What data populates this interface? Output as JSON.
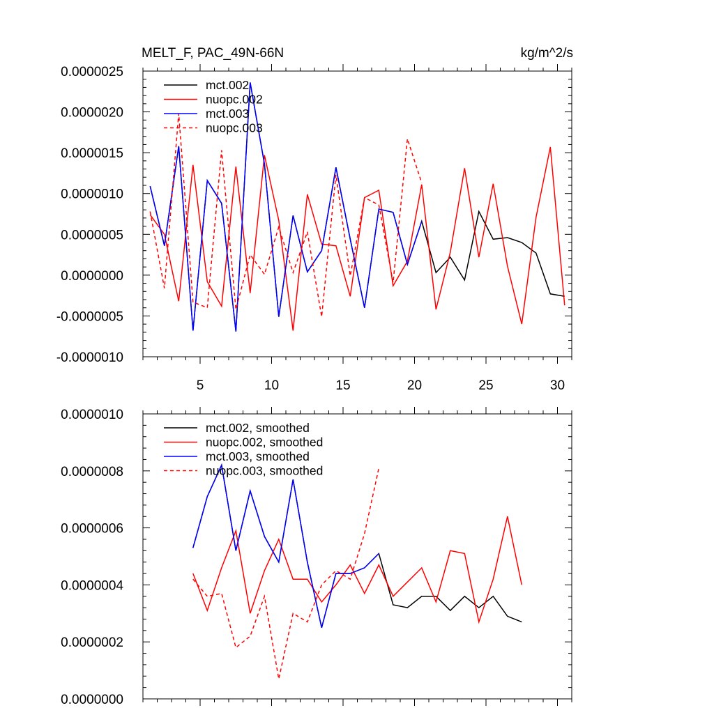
{
  "chart_data": [
    {
      "type": "line",
      "title": "MELT_F, PAC_49N-66N",
      "units": "kg/m^2/s",
      "xlabel": "",
      "ylabel": "",
      "xlim": [
        1,
        31
      ],
      "ylim": [
        -1e-06,
        2.5e-06
      ],
      "xticks": [
        5,
        10,
        15,
        20,
        25,
        30
      ],
      "xtick_labels": [
        "5",
        "10",
        "15",
        "20",
        "25",
        "30"
      ],
      "yticks": [
        -1e-06,
        -5e-07,
        0,
        5e-07,
        1e-06,
        1.5e-06,
        2e-06,
        2.5e-06
      ],
      "ytick_labels": [
        "-0.0000010",
        "-0.0000005",
        "0.0000000",
        "0.0000005",
        "0.0000010",
        "0.0000015",
        "0.0000020",
        "0.0000025"
      ],
      "grid": false,
      "legend_position": "top-left",
      "series": [
        {
          "name": "mct.002",
          "color": "#000000",
          "dash": "solid",
          "x": [
            1.5,
            2.5,
            3.5,
            4.5,
            5.5,
            6.5,
            7.5,
            8.5,
            9.5,
            10.5,
            11.5,
            12.5,
            13.5,
            14.5,
            15.5,
            16.5,
            17.5,
            18.5,
            19.5,
            20.5,
            21.5,
            22.5,
            23.5,
            24.5,
            25.5,
            26.5,
            27.5,
            28.5,
            29.5,
            30.5
          ],
          "values": [
            1.09e-06,
            3.6e-07,
            1.58e-06,
            -6.8e-07,
            1.16e-06,
            8.8e-07,
            -6.9e-07,
            2.36e-06,
            1.36e-06,
            -5.1e-07,
            7.3e-07,
            4e-08,
            3e-07,
            1.32e-06,
            4.4e-07,
            -4e-07,
            8.1e-07,
            7.7e-07,
            1.3e-07,
            6.6e-07,
            3e-08,
            2.2e-07,
            -6e-08,
            7.8e-07,
            4.4e-07,
            4.6e-07,
            4e-07,
            2.7e-07,
            -2.3e-07,
            -2.6e-07
          ]
        },
        {
          "name": "nuopc.002",
          "color": "#ff0000",
          "dash": "solid",
          "x": [
            1.5,
            2.5,
            3.5,
            4.5,
            5.5,
            6.5,
            7.5,
            8.5,
            9.5,
            10.5,
            11.5,
            12.5,
            13.5,
            14.5,
            15.5,
            16.5,
            17.5,
            18.5,
            19.5,
            20.5,
            21.5,
            22.5,
            23.5,
            24.5,
            25.5,
            26.5,
            27.5,
            28.5,
            29.5,
            30.5
          ],
          "values": [
            7.4e-07,
            5e-07,
            -3.2e-07,
            1.35e-06,
            -8e-08,
            -3.8e-07,
            1.33e-06,
            -2.2e-07,
            1.47e-06,
            6.7e-07,
            -6.8e-07,
            9.9e-07,
            3.8e-07,
            3.6e-07,
            -2.6e-07,
            9.5e-07,
            1.04e-06,
            -1.3e-07,
            1.7e-07,
            1.11e-06,
            -4.2e-07,
            2.8e-07,
            1.31e-06,
            2.2e-07,
            1.12e-06,
            1.1e-07,
            -6e-07,
            7.1e-07,
            1.57e-06,
            -3.7e-07
          ]
        },
        {
          "name": "mct.003",
          "color": "#0000ff",
          "dash": "solid",
          "x": [
            1.5,
            2.5,
            3.5,
            4.5,
            5.5,
            6.5,
            7.5,
            8.5,
            9.5,
            10.5,
            11.5,
            12.5,
            13.5,
            14.5,
            15.5,
            16.5,
            17.5,
            18.5,
            19.5,
            20.5
          ],
          "values": [
            1.09e-06,
            3.6e-07,
            1.58e-06,
            -6.8e-07,
            1.16e-06,
            8.8e-07,
            -6.9e-07,
            2.36e-06,
            1.36e-06,
            -5.1e-07,
            7.3e-07,
            4e-08,
            3e-07,
            1.32e-06,
            4.4e-07,
            -4e-07,
            8.1e-07,
            7.7e-07,
            1.3e-07,
            6.6e-07
          ]
        },
        {
          "name": "nuopc.003",
          "color": "#ff0000",
          "dash": "dashed",
          "x": [
            1.5,
            2.5,
            3.5,
            4.5,
            5.5,
            6.5,
            7.5,
            8.5,
            9.5,
            10.5,
            11.5,
            12.5,
            13.5,
            14.5,
            15.5,
            16.5,
            17.5,
            18.5,
            19.5,
            20.5
          ],
          "values": [
            7.8e-07,
            -1.6e-07,
            1.98e-06,
            -3.3e-07,
            -4e-07,
            1.53e-06,
            -4.2e-07,
            2.5e-07,
            1e-08,
            5.9e-07,
            3e-08,
            5.3e-07,
            -5.1e-07,
            1.23e-06,
            -1e-08,
            9.5e-07,
            8.6e-07,
            -9e-08,
            1.67e-06,
            1.13e-06
          ]
        }
      ]
    },
    {
      "type": "line",
      "title": "",
      "xlabel": "",
      "ylabel": "",
      "xlim": [
        1,
        31
      ],
      "ylim": [
        0,
        1e-06
      ],
      "xticks": [
        5,
        10,
        15,
        20,
        25,
        30
      ],
      "yticks": [
        0,
        2e-07,
        4e-07,
        6e-07,
        8e-07,
        1e-06
      ],
      "ytick_labels": [
        "0.0000000",
        "0.0000002",
        "0.0000004",
        "0.0000006",
        "0.0000008",
        "0.0000010"
      ],
      "grid": false,
      "legend_position": "top-left",
      "series": [
        {
          "name": "mct.002, smoothed",
          "color": "#000000",
          "dash": "solid",
          "x": [
            4.5,
            5.5,
            6.5,
            7.5,
            8.5,
            9.5,
            10.5,
            11.5,
            12.5,
            13.5,
            14.5,
            15.5,
            16.5,
            17.5,
            18.5,
            19.5,
            20.5,
            21.5,
            22.5,
            23.5,
            24.5,
            25.5,
            26.5,
            27.5
          ],
          "values": [
            5.3e-07,
            7.1e-07,
            8.2e-07,
            5.2e-07,
            7.3e-07,
            5.7e-07,
            4.8e-07,
            7.7e-07,
            4.8e-07,
            2.5e-07,
            4.4e-07,
            4.4e-07,
            4.6e-07,
            5.1e-07,
            3.3e-07,
            3.2e-07,
            3.6e-07,
            3.6e-07,
            3.1e-07,
            3.6e-07,
            3.2e-07,
            3.6e-07,
            2.9e-07,
            2.7e-07
          ]
        },
        {
          "name": "nuopc.002, smoothed",
          "color": "#ff0000",
          "dash": "solid",
          "x": [
            4.5,
            5.5,
            6.5,
            7.5,
            8.5,
            9.5,
            10.5,
            11.5,
            12.5,
            13.5,
            14.5,
            15.5,
            16.5,
            17.5,
            18.5,
            19.5,
            20.5,
            21.5,
            22.5,
            23.5,
            24.5,
            25.5,
            26.5,
            27.5
          ],
          "values": [
            4.4e-07,
            3.1e-07,
            4.6e-07,
            5.9e-07,
            3e-07,
            4.5e-07,
            5.6e-07,
            4.2e-07,
            4.2e-07,
            3.4e-07,
            4e-07,
            4.7e-07,
            3.7e-07,
            4.7e-07,
            3.6e-07,
            4.1e-07,
            4.6e-07,
            3.4e-07,
            5.2e-07,
            5.1e-07,
            2.7e-07,
            4.2e-07,
            6.4e-07,
            4e-07
          ]
        },
        {
          "name": "mct.003, smoothed",
          "color": "#0000ff",
          "dash": "solid",
          "x": [
            4.5,
            5.5,
            6.5,
            7.5,
            8.5,
            9.5,
            10.5,
            11.5,
            12.5,
            13.5,
            14.5,
            15.5,
            16.5,
            17.5
          ],
          "values": [
            5.3e-07,
            7.1e-07,
            8.2e-07,
            5.2e-07,
            7.3e-07,
            5.7e-07,
            4.8e-07,
            7.7e-07,
            4.8e-07,
            2.5e-07,
            4.4e-07,
            4.4e-07,
            4.6e-07,
            5.1e-07
          ]
        },
        {
          "name": "nuopc.003, smoothed",
          "color": "#ff0000",
          "dash": "dashed",
          "x": [
            4.5,
            5.5,
            6.5,
            7.5,
            8.5,
            9.5,
            10.5,
            11.5,
            12.5,
            13.5,
            14.5,
            15.5,
            16.5,
            17.5
          ],
          "values": [
            4.2e-07,
            3.6e-07,
            3.7e-07,
            1.8e-07,
            2.2e-07,
            3.6e-07,
            7e-08,
            3e-07,
            2.7e-07,
            4e-07,
            4.5e-07,
            4.2e-07,
            5.8e-07,
            8.1e-07
          ]
        }
      ]
    }
  ]
}
